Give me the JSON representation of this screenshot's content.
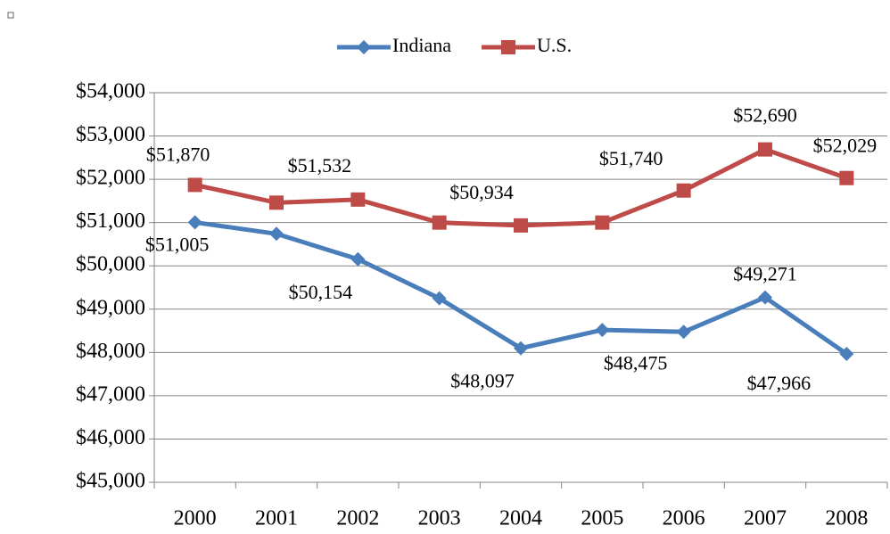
{
  "chart_data": {
    "type": "line",
    "categories": [
      "2000",
      "2001",
      "2002",
      "2003",
      "2004",
      "2005",
      "2006",
      "2007",
      "2008"
    ],
    "series": [
      {
        "name": "Indiana",
        "color": "#4a7ebb",
        "values": [
          51005,
          50740,
          50154,
          49250,
          48097,
          48520,
          48475,
          49271,
          47966
        ],
        "value_labels": [
          "$51,005",
          null,
          "$50,154",
          null,
          "$48,097",
          null,
          "$48,475",
          "$49,271",
          "$47,966"
        ]
      },
      {
        "name": "U.S.",
        "color": "#be4b48",
        "values": [
          51870,
          51460,
          51532,
          51000,
          50934,
          51000,
          51740,
          52690,
          52029
        ],
        "value_labels": [
          "$51,870",
          null,
          "$51,532",
          null,
          "$50,934",
          null,
          "$51,740",
          "$52,690",
          "$52,029"
        ]
      }
    ],
    "ylim": [
      45000,
      54000
    ],
    "yticks": [
      {
        "value": 45000,
        "label": "$45,000"
      },
      {
        "value": 46000,
        "label": "$46,000"
      },
      {
        "value": 47000,
        "label": "$47,000"
      },
      {
        "value": 48000,
        "label": "$48,000"
      },
      {
        "value": 49000,
        "label": "$49,000"
      },
      {
        "value": 50000,
        "label": "$50,000"
      },
      {
        "value": 51000,
        "label": "$51,000"
      },
      {
        "value": 52000,
        "label": "$52,000"
      },
      {
        "value": 53000,
        "label": "$53,000"
      },
      {
        "value": 54000,
        "label": "$54,000"
      }
    ],
    "grid": true,
    "legend": "top"
  }
}
